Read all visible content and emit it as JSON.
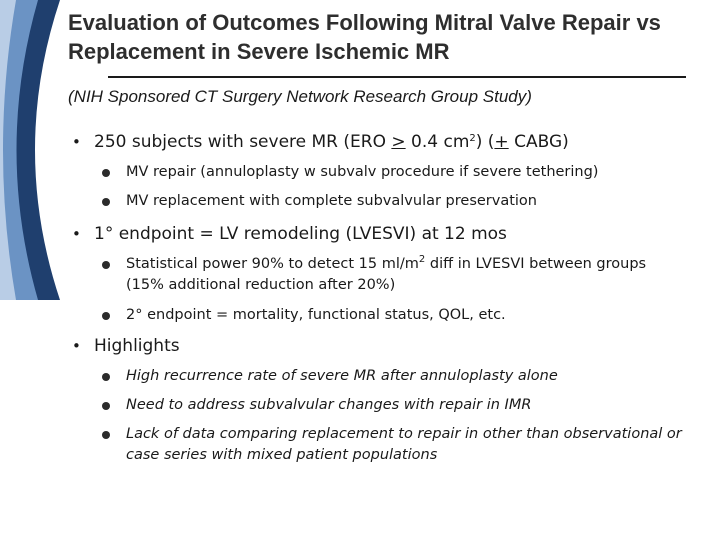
{
  "slide": {
    "title": "Evaluation of Outcomes Following Mitral Valve Repair vs Replacement in Severe Ischemic MR",
    "subtitle": "(NIH Sponsored CT Surgery Network Research Group Study)"
  },
  "bullets": {
    "b1": {
      "pre": "250 subjects with severe MR (ERO ",
      "gt": ">",
      "mid": " 0.4 cm",
      "sup": "2",
      "mid2": ") (",
      "pm": "+",
      "post": " CABG)"
    },
    "b1_1": "MV repair (annuloplasty w subvalv procedure if severe tethering)",
    "b1_2": "MV replacement with complete subvalvular preservation",
    "b2": "1° endpoint = LV remodeling (LVESVI) at 12 mos",
    "b2_1": {
      "pre": "Statistical power 90% to detect 15 ml/m",
      "sup": "2",
      "post": " diff in LVESVI between groups (15% additional reduction after 20%)"
    },
    "b2_2": "2° endpoint = mortality, functional status, QOL, etc.",
    "b3": "Highlights",
    "b3_1": "High recurrence rate of severe MR after annuloplasty alone",
    "b3_2": "Need to address subvalvular changes with repair in IMR",
    "b3_3": "Lack of data comparing replacement to repair in other than observational or case series with mixed patient populations"
  },
  "theme": {
    "arc_dark": "#1f3f6e",
    "arc_mid": "#6b93c4",
    "arc_light": "#b9cde6"
  }
}
